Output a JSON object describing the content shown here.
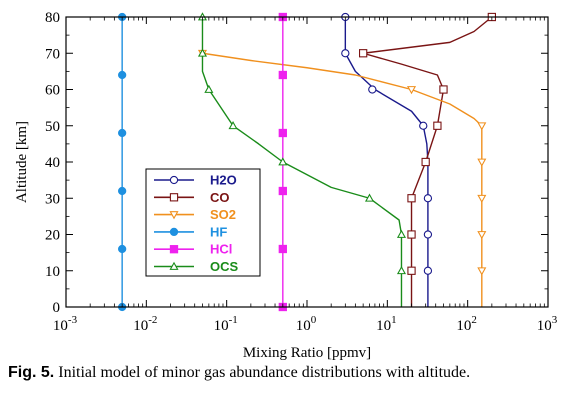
{
  "caption": {
    "label": "Fig. 5.",
    "text": "Initial model of minor gas abundance distributions with altitude."
  },
  "chart_data": {
    "type": "line",
    "xlabel": "Mixing Ratio [ppmv]",
    "ylabel": "Altitude [km]",
    "xscale": "log",
    "xlim": [
      0.001,
      1000
    ],
    "ylim": [
      0,
      80
    ],
    "xticks": [
      0.001,
      0.01,
      0.1,
      1,
      10,
      100,
      1000
    ],
    "xtick_labels": [
      {
        "base": "10",
        "exp": "-3"
      },
      {
        "base": "10",
        "exp": "-2"
      },
      {
        "base": "10",
        "exp": "-1"
      },
      {
        "base": "10",
        "exp": "0"
      },
      {
        "base": "10",
        "exp": "1"
      },
      {
        "base": "10",
        "exp": "2"
      },
      {
        "base": "10",
        "exp": "3"
      }
    ],
    "yticks": [
      0,
      10,
      20,
      30,
      40,
      50,
      60,
      70,
      80
    ],
    "ytick_labels": [
      "0",
      "10",
      "20",
      "30",
      "40",
      "50",
      "60",
      "70",
      "80"
    ],
    "grid": false,
    "legend_position": "center-left",
    "series": [
      {
        "name": "H2O",
        "color": "#1a1a8c",
        "marker": "circle-open",
        "line": [
          [
            32,
            0
          ],
          [
            32,
            10
          ],
          [
            32,
            20
          ],
          [
            32,
            30
          ],
          [
            32,
            40
          ],
          [
            31,
            45
          ],
          [
            28,
            50
          ],
          [
            20,
            54
          ],
          [
            7,
            60
          ],
          [
            4,
            65
          ],
          [
            3,
            70
          ],
          [
            3,
            80
          ]
        ],
        "markers": [
          [
            32,
            10
          ],
          [
            32,
            20
          ],
          [
            32,
            30
          ],
          [
            28,
            50
          ],
          [
            6.5,
            60
          ],
          [
            3,
            70
          ],
          [
            3,
            80
          ]
        ]
      },
      {
        "name": "CO",
        "color": "#7a1414",
        "marker": "square-open",
        "line": [
          [
            20,
            0
          ],
          [
            20,
            10
          ],
          [
            20,
            20
          ],
          [
            20,
            30
          ],
          [
            30,
            40
          ],
          [
            42,
            50
          ],
          [
            50,
            60
          ],
          [
            42,
            64
          ],
          [
            15,
            67
          ],
          [
            5,
            70
          ],
          [
            60,
            73
          ],
          [
            120,
            76
          ],
          [
            200,
            80
          ]
        ],
        "markers": [
          [
            20,
            10
          ],
          [
            20,
            20
          ],
          [
            20,
            30
          ],
          [
            30,
            40
          ],
          [
            42,
            50
          ],
          [
            50,
            60
          ],
          [
            5,
            70
          ],
          [
            200,
            80
          ]
        ]
      },
      {
        "name": "SO2",
        "color": "#f0901e",
        "marker": "triangle-down-open",
        "line": [
          [
            150,
            0
          ],
          [
            150,
            10
          ],
          [
            150,
            20
          ],
          [
            150,
            30
          ],
          [
            150,
            40
          ],
          [
            150,
            50
          ],
          [
            120,
            52
          ],
          [
            60,
            56
          ],
          [
            20,
            60
          ],
          [
            4,
            64
          ],
          [
            1,
            66
          ],
          [
            0.2,
            68
          ],
          [
            0.05,
            70
          ]
        ],
        "markers": [
          [
            150,
            10
          ],
          [
            150,
            20
          ],
          [
            150,
            30
          ],
          [
            150,
            40
          ],
          [
            150,
            50
          ],
          [
            20,
            60
          ],
          [
            0.05,
            70
          ]
        ]
      },
      {
        "name": "HF",
        "color": "#1e90e0",
        "marker": "circle-filled",
        "line": [
          [
            0.005,
            0
          ],
          [
            0.005,
            80
          ]
        ],
        "markers": [
          [
            0.005,
            0
          ],
          [
            0.005,
            16
          ],
          [
            0.005,
            32
          ],
          [
            0.005,
            48
          ],
          [
            0.005,
            64
          ],
          [
            0.005,
            80
          ]
        ]
      },
      {
        "name": "HCl",
        "color": "#ee22ee",
        "marker": "square-filled",
        "line": [
          [
            0.5,
            0
          ],
          [
            0.5,
            80
          ]
        ],
        "markers": [
          [
            0.5,
            0
          ],
          [
            0.5,
            16
          ],
          [
            0.5,
            32
          ],
          [
            0.5,
            48
          ],
          [
            0.5,
            64
          ],
          [
            0.5,
            80
          ]
        ]
      },
      {
        "name": "OCS",
        "color": "#1a8c1a",
        "marker": "triangle-up-open",
        "line": [
          [
            15,
            0
          ],
          [
            15,
            10
          ],
          [
            15,
            20
          ],
          [
            14,
            24
          ],
          [
            6,
            30
          ],
          [
            2,
            33
          ],
          [
            0.5,
            40
          ],
          [
            0.25,
            45
          ],
          [
            0.12,
            50
          ],
          [
            0.06,
            60
          ],
          [
            0.05,
            65
          ],
          [
            0.05,
            70
          ],
          [
            0.05,
            80
          ]
        ],
        "markers": [
          [
            15,
            10
          ],
          [
            15,
            20
          ],
          [
            6,
            30
          ],
          [
            0.5,
            40
          ],
          [
            0.12,
            50
          ],
          [
            0.06,
            60
          ],
          [
            0.05,
            70
          ],
          [
            0.05,
            80
          ]
        ]
      }
    ]
  }
}
